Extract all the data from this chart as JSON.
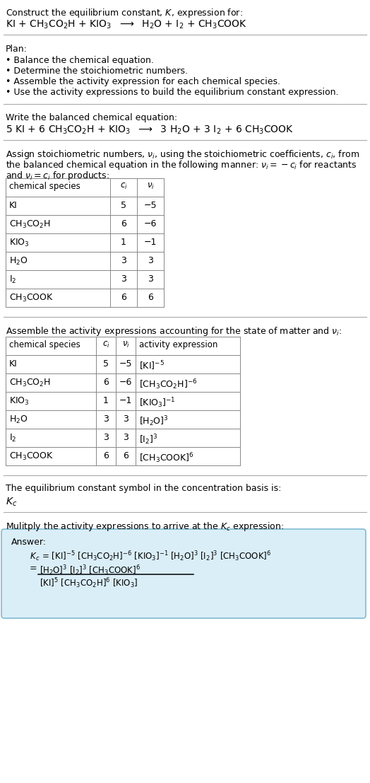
{
  "bg_color": "#ffffff",
  "title_line1": "Construct the equilibrium constant, $K$, expression for:",
  "title_line2": "KI + CH$_3$CO$_2$H + KIO$_3$  $\\longrightarrow$  H$_2$O + I$_2$ + CH$_3$COOK",
  "plan_header": "Plan:",
  "plan_items": [
    "• Balance the chemical equation.",
    "• Determine the stoichiometric numbers.",
    "• Assemble the activity expression for each chemical species.",
    "• Use the activity expressions to build the equilibrium constant expression."
  ],
  "balanced_header": "Write the balanced chemical equation:",
  "balanced_eq": "5 KI + 6 CH$_3$CO$_2$H + KIO$_3$  $\\longrightarrow$  3 H$_2$O + 3 I$_2$ + 6 CH$_3$COOK",
  "stoich_intro": "Assign stoichiometric numbers, $\\nu_i$, using the stoichiometric coefficients, $c_i$, from the balanced chemical equation in the following manner: $\\nu_i = -c_i$ for reactants and $\\nu_i = c_i$ for products:",
  "table1_headers": [
    "chemical species",
    "$c_i$",
    "$\\nu_i$"
  ],
  "table1_rows": [
    [
      "KI",
      "5",
      "−5"
    ],
    [
      "CH$_3$CO$_2$H",
      "6",
      "−6"
    ],
    [
      "KIO$_3$",
      "1",
      "−1"
    ],
    [
      "H$_2$O",
      "3",
      "3"
    ],
    [
      "I$_2$",
      "3",
      "3"
    ],
    [
      "CH$_3$COOK",
      "6",
      "6"
    ]
  ],
  "activity_header": "Assemble the activity expressions accounting for the state of matter and $\\nu_i$:",
  "table2_headers": [
    "chemical species",
    "$c_i$",
    "$\\nu_i$",
    "activity expression"
  ],
  "table2_rows": [
    [
      "KI",
      "5",
      "−5",
      "[KI]$^{-5}$"
    ],
    [
      "CH$_3$CO$_2$H",
      "6",
      "−6",
      "[CH$_3$CO$_2$H]$^{-6}$"
    ],
    [
      "KIO$_3$",
      "1",
      "−1",
      "[KIO$_3$]$^{-1}$"
    ],
    [
      "H$_2$O",
      "3",
      "3",
      "[H$_2$O]$^3$"
    ],
    [
      "I$_2$",
      "3",
      "3",
      "[I$_2$]$^3$"
    ],
    [
      "CH$_3$COOK",
      "6",
      "6",
      "[CH$_3$COOK]$^6$"
    ]
  ],
  "kc_header": "The equilibrium constant symbol in the concentration basis is:",
  "kc_symbol": "$K_c$",
  "multiply_header": "Mulitply the activity expressions to arrive at the $K_c$ expression:",
  "answer_label": "Answer:",
  "answer_line1": "    $K_c$ = [KI]$^{-5}$ [CH$_3$CO$_2$H]$^{-6}$ [KIO$_3$]$^{-1}$ [H$_2$O]$^3$ [I$_2$]$^3$ [CH$_3$COOK]$^6$",
  "answer_box_color": "#daeef8",
  "answer_box_border": "#7fbcd2",
  "text_color": "#000000",
  "sep_color": "#aaaaaa",
  "fs": 9.0,
  "fs_small": 8.5,
  "fs_title_eq": 10.0
}
